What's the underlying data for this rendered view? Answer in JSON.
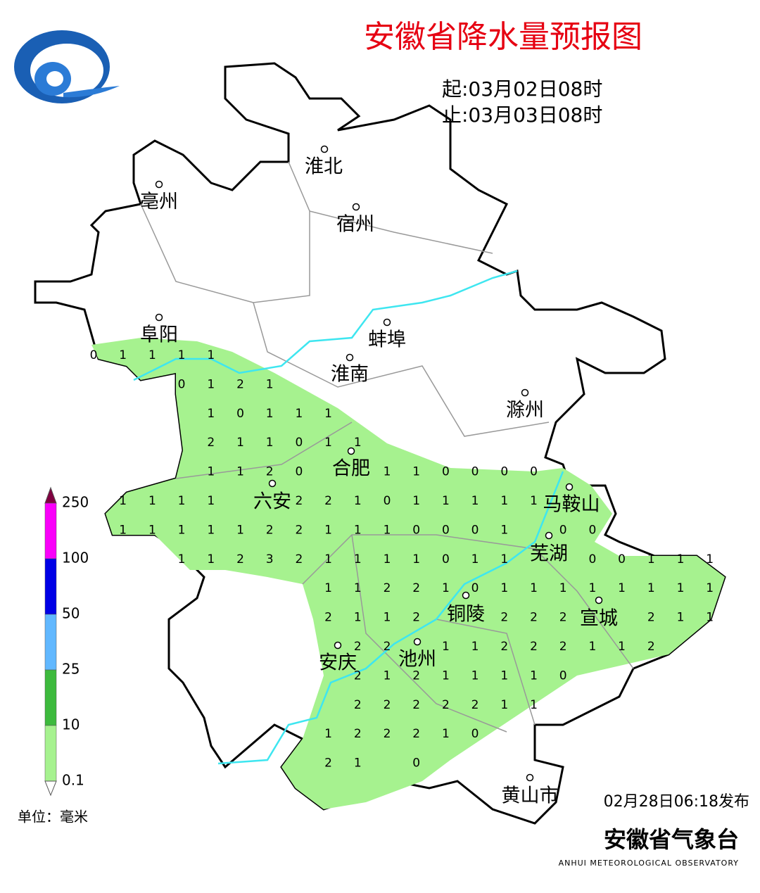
{
  "header": {
    "title": "安徽省降水量预报图",
    "start": "起:03月02日08时",
    "end": "止:03月03日08时"
  },
  "cities": [
    "淮北",
    "亳州",
    "宿州",
    "阜阳",
    "蚌埠",
    "淮南",
    "滁州",
    "合肥",
    "六安",
    "马鞍山",
    "芜湖",
    "铜陵",
    "宣城",
    "安庆",
    "池州",
    "黄山市"
  ],
  "grid": {
    "rows": [
      [
        0,
        1,
        1,
        1,
        1,
        null,
        null,
        null,
        null,
        null,
        null,
        null,
        null,
        null,
        null,
        null,
        null,
        null,
        null,
        null,
        null,
        null
      ],
      [
        null,
        null,
        null,
        0,
        1,
        2,
        1,
        null,
        null,
        null,
        null,
        null,
        null,
        null,
        null,
        null,
        null,
        null,
        null,
        null,
        null,
        null
      ],
      [
        null,
        null,
        null,
        null,
        1,
        0,
        1,
        1,
        1,
        null,
        null,
        null,
        null,
        null,
        null,
        null,
        null,
        null,
        null,
        null,
        null,
        null
      ],
      [
        null,
        null,
        null,
        null,
        2,
        1,
        1,
        0,
        1,
        1,
        null,
        null,
        null,
        null,
        null,
        null,
        null,
        null,
        null,
        null,
        null,
        null
      ],
      [
        null,
        null,
        null,
        null,
        1,
        1,
        2,
        0,
        null,
        null,
        1,
        1,
        0,
        0,
        0,
        0,
        null,
        null,
        null,
        null,
        null,
        null
      ],
      [
        null,
        1,
        1,
        1,
        1,
        null,
        null,
        2,
        2,
        1,
        0,
        1,
        1,
        1,
        1,
        1,
        null,
        null,
        null,
        null,
        null,
        null
      ],
      [
        null,
        1,
        1,
        1,
        1,
        1,
        2,
        2,
        1,
        1,
        1,
        0,
        0,
        0,
        1,
        null,
        0,
        0,
        null,
        null,
        null,
        null
      ],
      [
        null,
        null,
        null,
        1,
        1,
        2,
        3,
        2,
        1,
        1,
        1,
        1,
        0,
        1,
        1,
        null,
        null,
        0,
        0,
        1,
        1,
        1
      ],
      [
        null,
        null,
        null,
        null,
        null,
        null,
        null,
        null,
        1,
        1,
        2,
        2,
        1,
        0,
        1,
        1,
        1,
        1,
        1,
        1,
        1,
        1
      ],
      [
        null,
        null,
        null,
        null,
        null,
        null,
        null,
        null,
        2,
        1,
        1,
        2,
        null,
        null,
        2,
        2,
        2,
        null,
        null,
        2,
        1,
        1
      ],
      [
        null,
        null,
        null,
        null,
        null,
        null,
        null,
        null,
        null,
        2,
        2,
        null,
        1,
        1,
        2,
        2,
        2,
        1,
        1,
        2,
        null,
        null
      ],
      [
        null,
        null,
        null,
        null,
        null,
        null,
        null,
        null,
        null,
        2,
        1,
        2,
        1,
        1,
        1,
        1,
        0,
        null,
        null,
        null,
        null,
        null
      ],
      [
        null,
        null,
        null,
        null,
        null,
        null,
        null,
        null,
        null,
        2,
        2,
        2,
        2,
        2,
        1,
        1,
        null,
        null,
        null,
        null,
        null,
        null
      ],
      [
        null,
        null,
        null,
        null,
        null,
        null,
        null,
        null,
        1,
        2,
        2,
        2,
        1,
        0,
        null,
        null,
        null,
        null,
        null,
        null,
        null,
        null
      ],
      [
        null,
        null,
        null,
        null,
        null,
        null,
        null,
        null,
        2,
        1,
        null,
        0,
        null,
        null,
        null,
        null,
        null,
        null,
        null,
        null,
        null,
        null
      ]
    ]
  },
  "legend": {
    "labels": [
      "250",
      "100",
      "50",
      "25",
      "10",
      "0.1"
    ],
    "colors": [
      "#fa00fa",
      "#0000e6",
      "#61b8ff",
      "#3dba3d",
      "#a6f28f"
    ],
    "top_color": "#800040",
    "unit": "单位：毫米"
  },
  "footer": {
    "published": "02月28日06:18发布",
    "org": "安徽省气象台",
    "org_en": "ANHUI METEOROLOGICAL OBSERVATORY"
  }
}
